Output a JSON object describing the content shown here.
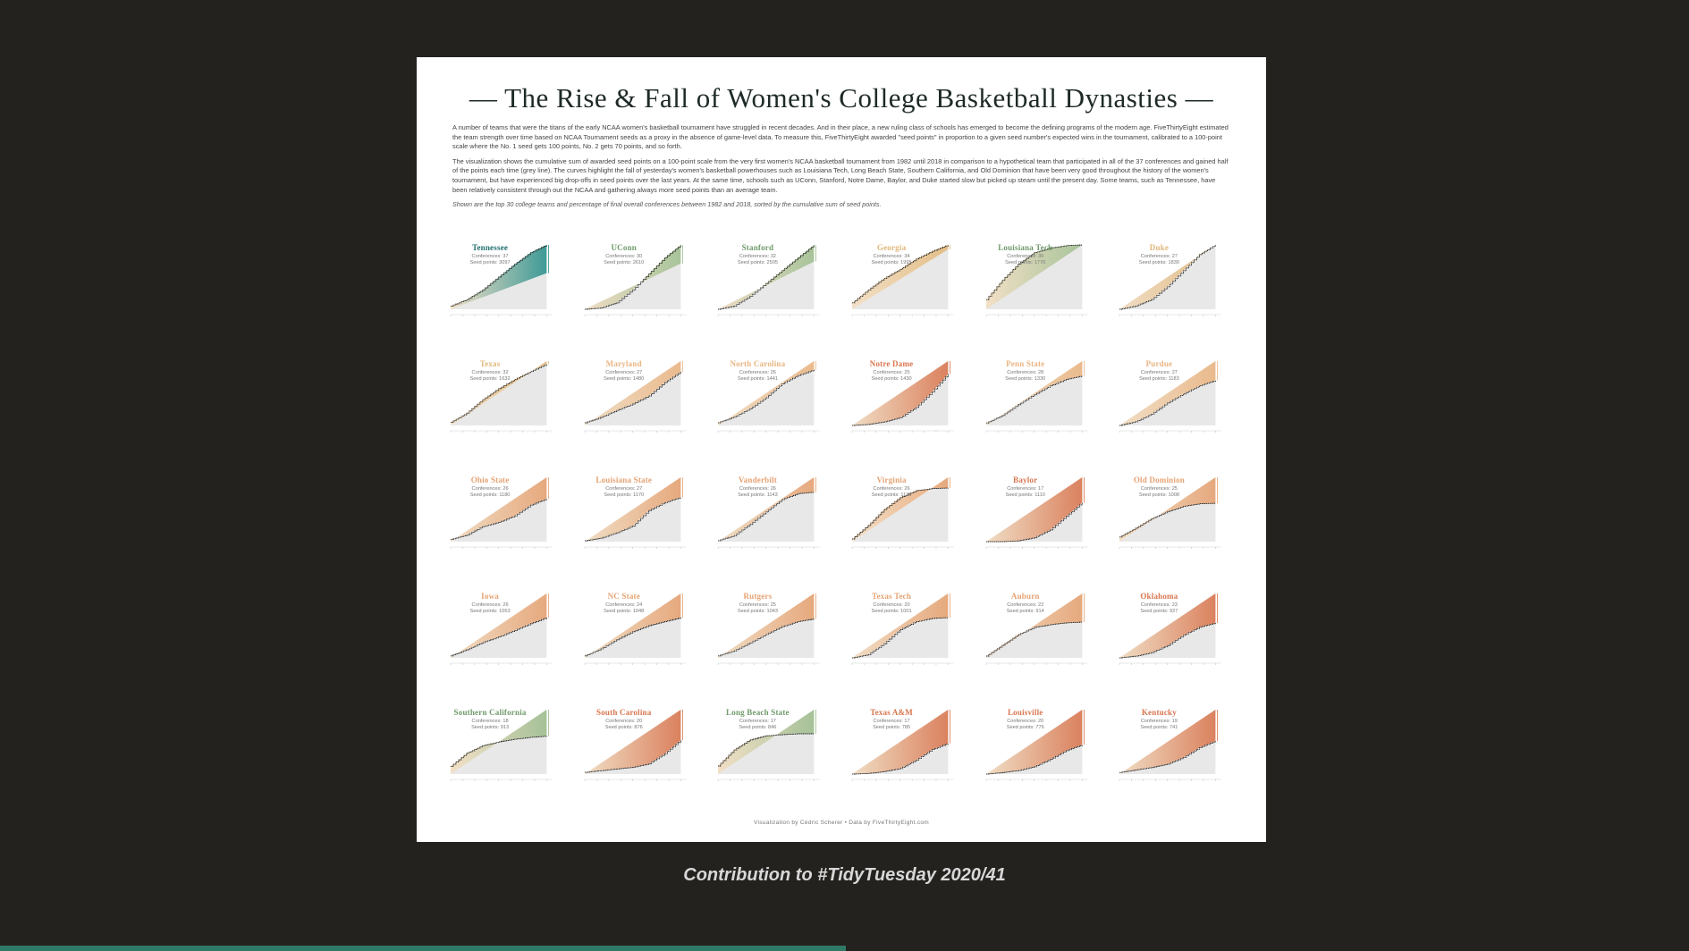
{
  "poster": {
    "title": "— The Rise & Fall of Women's College Basketball Dynasties —",
    "intro_1": "A number of teams that were the titans of the early NCAA women's basketball tournament have struggled in recent decades. And in their place, a new ruling class of schools has emerged to become the defining programs of the modern age. FiveThirtyEight estimated the team strength over time based on NCAA Tournament seeds as a proxy in the absence of game-level data. To measure this, FiveThirtyEight awarded \"seed points\" in proportion to a given seed number's expected wins in the tournament, calibrated to a 100-point scale where the No. 1 seed gets 100 points, No. 2 gets 70 points, and so forth.",
    "intro_2": "The visualization shows the cumulative sum of awarded seed points on a 100-point scale from the very first women's NCAA basketball tournament from 1982 until 2018 in comparison to a hypothetical team that participated in all of the 37 conferences and gained half of the points each time (grey line). The curves highlight the fall of yesterday's women's basketball powerhouses such as Louisiana Tech, Long Beach State, Southern California, and Old Dominion that have been very good throughout the history of the women's tournament, but have experienced big drop-offs in seed points over the last years. At the same time, schools such as UConn, Stanford, Notre Dame, Baylor, and Duke started slow but picked up steam until the present day. Some teams, such as Tennessee, have been relatively consistent through out the NCAA and gathering always more seed points than an average team.",
    "note": "Shown are the top 30 college teams and percentage of final overall conferences between 1982 and 2018, sorted by the cumulative sum of seed points.",
    "credit": "Visualization by Cédric Scherer • Data by FiveThirtyEight.com"
  },
  "caption": "Contribution to #TidyTuesday 2020/41",
  "colors": {
    "background": "#23221f",
    "poster": "#ffffff",
    "teal": "#2a8f8c",
    "green": "#9ebd8f",
    "peach": "#eab583",
    "orange": "#d9764f",
    "grey_area": "#e8e8e8",
    "accent_bar": "#2f7a66"
  },
  "chart_data": {
    "type": "area",
    "x": [
      1982,
      2018
    ],
    "panels": [
      {
        "name": "Tennessee",
        "sub1": "Conferences: 37",
        "sub2": "Seed points: 3097",
        "color": "#2a8f8c",
        "end": 3097,
        "curve": [
          0.05,
          0.15,
          0.3,
          0.5,
          0.7,
          0.88,
          1.0
        ],
        "ref": 0.56
      },
      {
        "name": "UConn",
        "sub1": "Conferences: 30",
        "sub2": "Seed points: 2610",
        "color": "#9ebd8f",
        "end": 2610,
        "curve": [
          0.0,
          0.02,
          0.1,
          0.3,
          0.55,
          0.8,
          1.0
        ],
        "ref": 0.71
      },
      {
        "name": "Stanford",
        "sub1": "Conferences: 32",
        "sub2": "Seed points: 2505",
        "color": "#9ebd8f",
        "end": 2505,
        "curve": [
          0.0,
          0.05,
          0.2,
          0.4,
          0.6,
          0.8,
          1.0
        ],
        "ref": 0.74
      },
      {
        "name": "Georgia",
        "sub1": "Conferences: 34",
        "sub2": "Seed points: 1995",
        "color": "#e0b77a",
        "end": 1995,
        "curve": [
          0.1,
          0.3,
          0.48,
          0.62,
          0.78,
          0.9,
          1.0
        ],
        "ref": 0.93
      },
      {
        "name": "Louisiana Tech",
        "sub1": "Conferences: 30",
        "sub2": "Seed points: 1770",
        "color": "#9ebd8f",
        "end": 1770,
        "curve": [
          0.15,
          0.45,
          0.7,
          0.88,
          0.95,
          0.99,
          1.0
        ],
        "ref": 1.0
      },
      {
        "name": "Duke",
        "sub1": "Conferences: 27",
        "sub2": "Seed points: 1830",
        "color": "#e0b77a",
        "end": 1830,
        "curve": [
          0.0,
          0.05,
          0.15,
          0.35,
          0.6,
          0.85,
          1.0
        ],
        "ref": 1.0
      },
      {
        "name": "Texas",
        "sub1": "Conferences: 32",
        "sub2": "Seed points: 1632",
        "color": "#e0b77a",
        "end": 1632,
        "curve": [
          0.05,
          0.2,
          0.42,
          0.6,
          0.75,
          0.88,
          1.0
        ],
        "ref": 1.05
      },
      {
        "name": "Maryland",
        "sub1": "Conferences: 27",
        "sub2": "Seed points: 1480",
        "color": "#eab583",
        "end": 1480,
        "curve": [
          0.05,
          0.15,
          0.28,
          0.4,
          0.55,
          0.8,
          1.0
        ],
        "ref": 1.2
      },
      {
        "name": "North Carolina",
        "sub1": "Conferences: 26",
        "sub2": "Seed points: 1441",
        "color": "#eab583",
        "end": 1441,
        "curve": [
          0.05,
          0.15,
          0.3,
          0.5,
          0.75,
          0.9,
          1.0
        ],
        "ref": 1.16
      },
      {
        "name": "Notre Dame",
        "sub1": "Conferences: 25",
        "sub2": "Seed points: 1430",
        "color": "#d9764f",
        "end": 1430,
        "curve": [
          0.0,
          0.02,
          0.07,
          0.15,
          0.35,
          0.65,
          1.0
        ],
        "ref": 1.25
      },
      {
        "name": "Penn State",
        "sub1": "Conferences: 28",
        "sub2": "Seed points: 1330",
        "color": "#eab583",
        "end": 1330,
        "curve": [
          0.05,
          0.2,
          0.42,
          0.62,
          0.8,
          0.93,
          1.0
        ],
        "ref": 1.3
      },
      {
        "name": "Purdue",
        "sub1": "Conferences: 27",
        "sub2": "Seed points: 1183",
        "color": "#eab583",
        "end": 1183,
        "curve": [
          0.0,
          0.08,
          0.25,
          0.5,
          0.7,
          0.88,
          1.0
        ],
        "ref": 1.43
      },
      {
        "name": "Ohio State",
        "sub1": "Conferences: 26",
        "sub2": "Seed points: 1180",
        "color": "#e6a272",
        "end": 1180,
        "curve": [
          0.05,
          0.15,
          0.35,
          0.45,
          0.6,
          0.85,
          1.0
        ],
        "ref": 1.5
      },
      {
        "name": "Louisiana State",
        "sub1": "Conferences: 27",
        "sub2": "Seed points: 1170",
        "color": "#e6a272",
        "end": 1170,
        "curve": [
          0.02,
          0.08,
          0.2,
          0.35,
          0.7,
          0.88,
          1.0
        ],
        "ref": 1.45
      },
      {
        "name": "Vanderbilt",
        "sub1": "Conferences: 26",
        "sub2": "Seed points: 1143",
        "color": "#e6a272",
        "end": 1143,
        "curve": [
          0.02,
          0.12,
          0.35,
          0.6,
          0.85,
          0.97,
          1.0
        ],
        "ref": 1.3
      },
      {
        "name": "Virginia",
        "sub1": "Conferences: 26",
        "sub2": "Seed points: 1130",
        "color": "#e6a272",
        "end": 1130,
        "curve": [
          0.05,
          0.3,
          0.6,
          0.82,
          0.95,
          0.99,
          1.0
        ],
        "ref": 1.2
      },
      {
        "name": "Baylor",
        "sub1": "Conferences: 17",
        "sub2": "Seed points: 1110",
        "color": "#d9764f",
        "end": 1110,
        "curve": [
          0.0,
          0.0,
          0.02,
          0.1,
          0.3,
          0.65,
          1.0
        ],
        "ref": 1.65
      },
      {
        "name": "Old Dominion",
        "sub1": "Conferences: 25",
        "sub2": "Seed points: 1008",
        "color": "#e6a272",
        "end": 1008,
        "curve": [
          0.12,
          0.35,
          0.6,
          0.78,
          0.92,
          0.99,
          1.0
        ],
        "ref": 1.68
      },
      {
        "name": "Iowa",
        "sub1": "Conferences: 26",
        "sub2": "Seed points: 1053",
        "color": "#e6a272",
        "end": 1053,
        "curve": [
          0.05,
          0.2,
          0.38,
          0.52,
          0.68,
          0.85,
          1.0
        ],
        "ref": 1.6
      },
      {
        "name": "NC State",
        "sub1": "Conferences: 24",
        "sub2": "Seed points: 1048",
        "color": "#e6a272",
        "end": 1048,
        "curve": [
          0.05,
          0.22,
          0.45,
          0.65,
          0.8,
          0.9,
          1.0
        ],
        "ref": 1.6
      },
      {
        "name": "Rutgers",
        "sub1": "Conferences: 25",
        "sub2": "Seed points: 1043",
        "color": "#e6a272",
        "end": 1043,
        "curve": [
          0.05,
          0.18,
          0.38,
          0.6,
          0.8,
          0.93,
          1.0
        ],
        "ref": 1.65
      },
      {
        "name": "Texas Tech",
        "sub1": "Conferences: 20",
        "sub2": "Seed points: 1001",
        "color": "#e6a272",
        "end": 1001,
        "curve": [
          0.0,
          0.08,
          0.35,
          0.7,
          0.9,
          0.98,
          1.0
        ],
        "ref": 1.6
      },
      {
        "name": "Auburn",
        "sub1": "Conferences: 22",
        "sub2": "Seed points: 914",
        "color": "#e6a272",
        "end": 914,
        "curve": [
          0.05,
          0.35,
          0.65,
          0.85,
          0.93,
          0.98,
          1.0
        ],
        "ref": 1.8
      },
      {
        "name": "Oklahoma",
        "sub1": "Conferences: 23",
        "sub2": "Seed points: 927",
        "color": "#d9764f",
        "end": 927,
        "curve": [
          0.0,
          0.05,
          0.15,
          0.35,
          0.65,
          0.88,
          1.0
        ],
        "ref": 1.85
      },
      {
        "name": "Southern California",
        "sub1": "Conferences: 18",
        "sub2": "Seed points: 913",
        "color": "#9ebd8f",
        "end": 913,
        "curve": [
          0.2,
          0.55,
          0.75,
          0.85,
          0.92,
          0.97,
          1.0
        ],
        "ref": 1.7
      },
      {
        "name": "South Carolina",
        "sub1": "Conferences: 20",
        "sub2": "Seed points: 876",
        "color": "#d9764f",
        "end": 876,
        "curve": [
          0.05,
          0.1,
          0.15,
          0.2,
          0.3,
          0.6,
          1.0
        ],
        "ref": 1.9
      },
      {
        "name": "Long Beach State",
        "sub1": "Conferences: 17",
        "sub2": "Seed points: 846",
        "color": "#9ebd8f",
        "end": 846,
        "curve": [
          0.2,
          0.6,
          0.85,
          0.95,
          0.98,
          1.0,
          1.0
        ],
        "ref": 1.6
      },
      {
        "name": "Texas A&M",
        "sub1": "Conferences: 17",
        "sub2": "Seed points: 785",
        "color": "#d9764f",
        "end": 785,
        "curve": [
          0.0,
          0.02,
          0.08,
          0.18,
          0.45,
          0.8,
          1.0
        ],
        "ref": 2.1
      },
      {
        "name": "Louisville",
        "sub1": "Conferences: 20",
        "sub2": "Seed points: 776",
        "color": "#d9764f",
        "end": 776,
        "curve": [
          0.0,
          0.05,
          0.12,
          0.25,
          0.5,
          0.8,
          1.0
        ],
        "ref": 2.2
      },
      {
        "name": "Kentucky",
        "sub1": "Conferences: 19",
        "sub2": "Seed points: 741",
        "color": "#d9764f",
        "end": 741,
        "curve": [
          0.05,
          0.12,
          0.2,
          0.3,
          0.5,
          0.8,
          1.0
        ],
        "ref": 1.95
      }
    ]
  }
}
